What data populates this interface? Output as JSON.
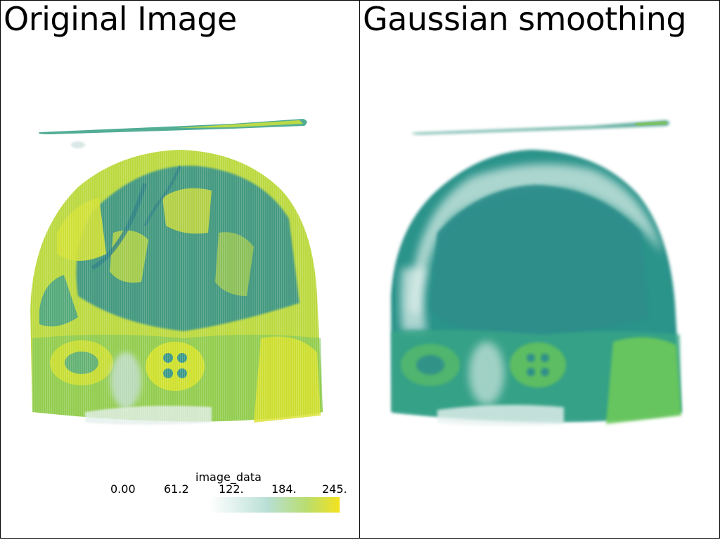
{
  "viewports": [
    {
      "title": "Original Image"
    },
    {
      "title": "Gaussian smoothing"
    }
  ],
  "scalar_bar": {
    "title": "image_data",
    "labels": [
      "0.00",
      "61.2",
      "122.",
      "184.",
      "245."
    ],
    "colors": {
      "low": "#ffffff",
      "mid": "#b8dfd5",
      "high": "#f4e21e"
    }
  },
  "colors": {
    "teal": "#2c938a",
    "green": "#64c15c",
    "yellow": "#cde134",
    "border": "#000000",
    "background": "#ffffff"
  }
}
